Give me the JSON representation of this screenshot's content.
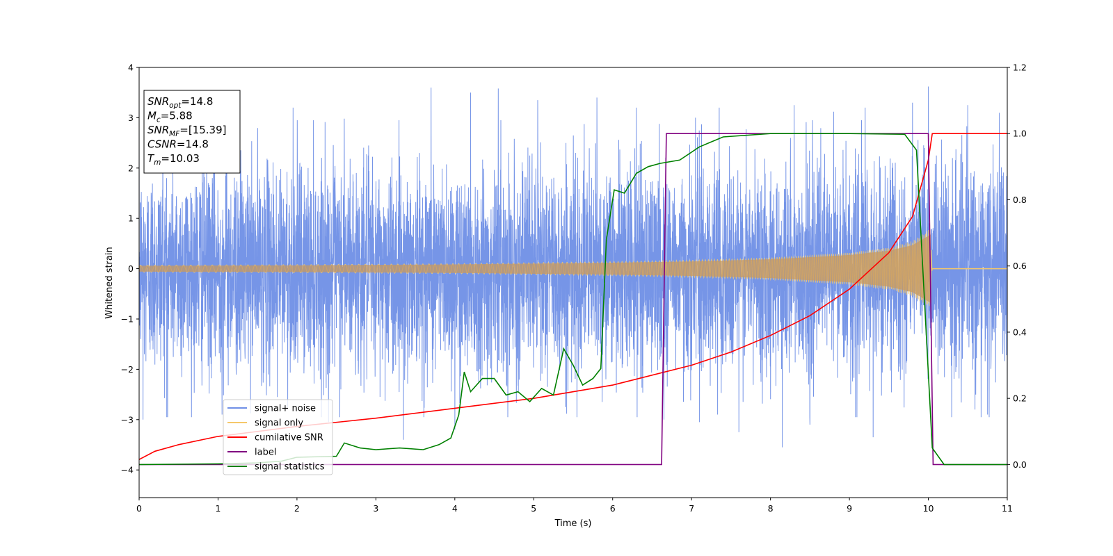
{
  "chart_data": {
    "type": "line",
    "xlabel": "Time (s)",
    "ylabel": "Whitened strain",
    "xlim": [
      0,
      11
    ],
    "ylim_left": [
      -4.55,
      4
    ],
    "ylim_right": [
      -0.1,
      1.2
    ],
    "x_ticks": [
      0,
      1,
      2,
      3,
      4,
      5,
      6,
      7,
      8,
      9,
      10,
      11
    ],
    "y_ticks_left": [
      -4,
      -3,
      -2,
      -1,
      0,
      1,
      2,
      3,
      4
    ],
    "y_ticks_right": [
      0.0,
      0.2,
      0.4,
      0.6,
      0.8,
      1.0,
      1.2
    ],
    "grid": false,
    "legend_position": "lower-left",
    "info_box": {
      "lines": [
        {
          "main": "SNR",
          "sub": "opt",
          "rest": "=14.8"
        },
        {
          "main": "M",
          "sub": "c",
          "rest": "=5.88"
        },
        {
          "main": "SNR",
          "sub": "MF",
          "rest": "=[15.39]"
        },
        {
          "main": "CSNR",
          "sub": "",
          "rest": "=14.8"
        },
        {
          "main": "T",
          "sub": "m",
          "rest": "=10.03"
        }
      ]
    },
    "series": [
      {
        "name": "signal+ noise",
        "axis": "left",
        "color": "#6f8fe6",
        "description": "noisy whitened strain, approx. unit-variance noise over 0-11 s",
        "noise_std": 1.0,
        "peaks": [
          [
            0.3,
            3.1
          ],
          [
            0.8,
            3.05
          ],
          [
            1.95,
            3.2
          ],
          [
            2.6,
            2.98
          ],
          [
            3.7,
            3.6
          ],
          [
            4.2,
            3.5
          ],
          [
            4.55,
            3.58
          ],
          [
            5.05,
            3.35
          ],
          [
            5.8,
            3.4
          ],
          [
            6.3,
            3.2
          ],
          [
            7.05,
            3.0
          ],
          [
            7.35,
            3.2
          ],
          [
            8.3,
            3.25
          ],
          [
            8.8,
            3.12
          ],
          [
            9.2,
            3.2
          ],
          [
            9.8,
            3.3
          ],
          [
            10.0,
            3.62
          ],
          [
            10.5,
            3.25
          ],
          [
            10.9,
            3.1
          ]
        ],
        "troughs": [
          [
            0.05,
            -3.0
          ],
          [
            0.35,
            -2.95
          ],
          [
            1.05,
            -2.9
          ],
          [
            1.75,
            -2.55
          ],
          [
            2.4,
            -3.05
          ],
          [
            3.35,
            -3.4
          ],
          [
            4.0,
            -3.2
          ],
          [
            5.4,
            -2.75
          ],
          [
            6.65,
            -3.0
          ],
          [
            7.1,
            -3.05
          ],
          [
            7.6,
            -3.25
          ],
          [
            8.15,
            -3.55
          ],
          [
            8.5,
            -3.1
          ],
          [
            9.3,
            -3.35
          ],
          [
            10.75,
            -2.9
          ],
          [
            11.0,
            -3.1
          ]
        ]
      },
      {
        "name": "signal only",
        "axis": "left",
        "color": "#f5c86a",
        "description": "chirp envelope, amplitude growing until merger at ~10.03 s then zero",
        "envelope": [
          [
            0,
            0.07
          ],
          [
            2,
            0.08
          ],
          [
            4,
            0.1
          ],
          [
            6,
            0.14
          ],
          [
            7,
            0.17
          ],
          [
            8,
            0.22
          ],
          [
            9,
            0.32
          ],
          [
            9.5,
            0.42
          ],
          [
            9.8,
            0.55
          ],
          [
            10.03,
            0.8
          ],
          [
            10.05,
            0.0
          ],
          [
            11,
            0.0
          ]
        ]
      },
      {
        "name": "cumilative SNR",
        "axis": "right",
        "color": "#ff0000",
        "points": [
          [
            0,
            0.015
          ],
          [
            0.2,
            0.04
          ],
          [
            0.5,
            0.06
          ],
          [
            1,
            0.085
          ],
          [
            2,
            0.115
          ],
          [
            3,
            0.14
          ],
          [
            4,
            0.17
          ],
          [
            5,
            0.2
          ],
          [
            6,
            0.24
          ],
          [
            7,
            0.3
          ],
          [
            7.5,
            0.34
          ],
          [
            8,
            0.39
          ],
          [
            8.5,
            0.45
          ],
          [
            9,
            0.53
          ],
          [
            9.5,
            0.64
          ],
          [
            9.8,
            0.75
          ],
          [
            10.0,
            0.92
          ],
          [
            10.05,
            1.0
          ],
          [
            11,
            1.0
          ]
        ]
      },
      {
        "name": "label",
        "axis": "right",
        "color": "#800080",
        "points": [
          [
            0,
            0.0
          ],
          [
            6.62,
            0.0
          ],
          [
            6.68,
            1.0
          ],
          [
            10.0,
            1.0
          ],
          [
            10.06,
            0.0
          ],
          [
            11,
            0.0
          ]
        ]
      },
      {
        "name": "signal statistics",
        "axis": "right",
        "color": "#008000",
        "points": [
          [
            0,
            0.0
          ],
          [
            1.0,
            0.002
          ],
          [
            1.5,
            0.005
          ],
          [
            1.8,
            0.01
          ],
          [
            2.0,
            0.022
          ],
          [
            2.5,
            0.025
          ],
          [
            2.6,
            0.065
          ],
          [
            2.8,
            0.05
          ],
          [
            3.0,
            0.045
          ],
          [
            3.3,
            0.05
          ],
          [
            3.6,
            0.045
          ],
          [
            3.8,
            0.06
          ],
          [
            3.95,
            0.08
          ],
          [
            4.05,
            0.15
          ],
          [
            4.12,
            0.28
          ],
          [
            4.2,
            0.22
          ],
          [
            4.35,
            0.26
          ],
          [
            4.5,
            0.26
          ],
          [
            4.65,
            0.21
          ],
          [
            4.8,
            0.22
          ],
          [
            4.95,
            0.19
          ],
          [
            5.1,
            0.23
          ],
          [
            5.25,
            0.21
          ],
          [
            5.38,
            0.35
          ],
          [
            5.5,
            0.3
          ],
          [
            5.62,
            0.24
          ],
          [
            5.75,
            0.26
          ],
          [
            5.85,
            0.29
          ],
          [
            5.92,
            0.68
          ],
          [
            6.02,
            0.83
          ],
          [
            6.15,
            0.82
          ],
          [
            6.3,
            0.88
          ],
          [
            6.45,
            0.9
          ],
          [
            6.6,
            0.91
          ],
          [
            6.85,
            0.92
          ],
          [
            7.1,
            0.96
          ],
          [
            7.4,
            0.99
          ],
          [
            8,
            1.0
          ],
          [
            9,
            1.0
          ],
          [
            9.7,
            0.998
          ],
          [
            9.85,
            0.95
          ],
          [
            9.95,
            0.5
          ],
          [
            10.05,
            0.05
          ],
          [
            10.2,
            0.0
          ],
          [
            11,
            0.0
          ]
        ]
      }
    ]
  }
}
